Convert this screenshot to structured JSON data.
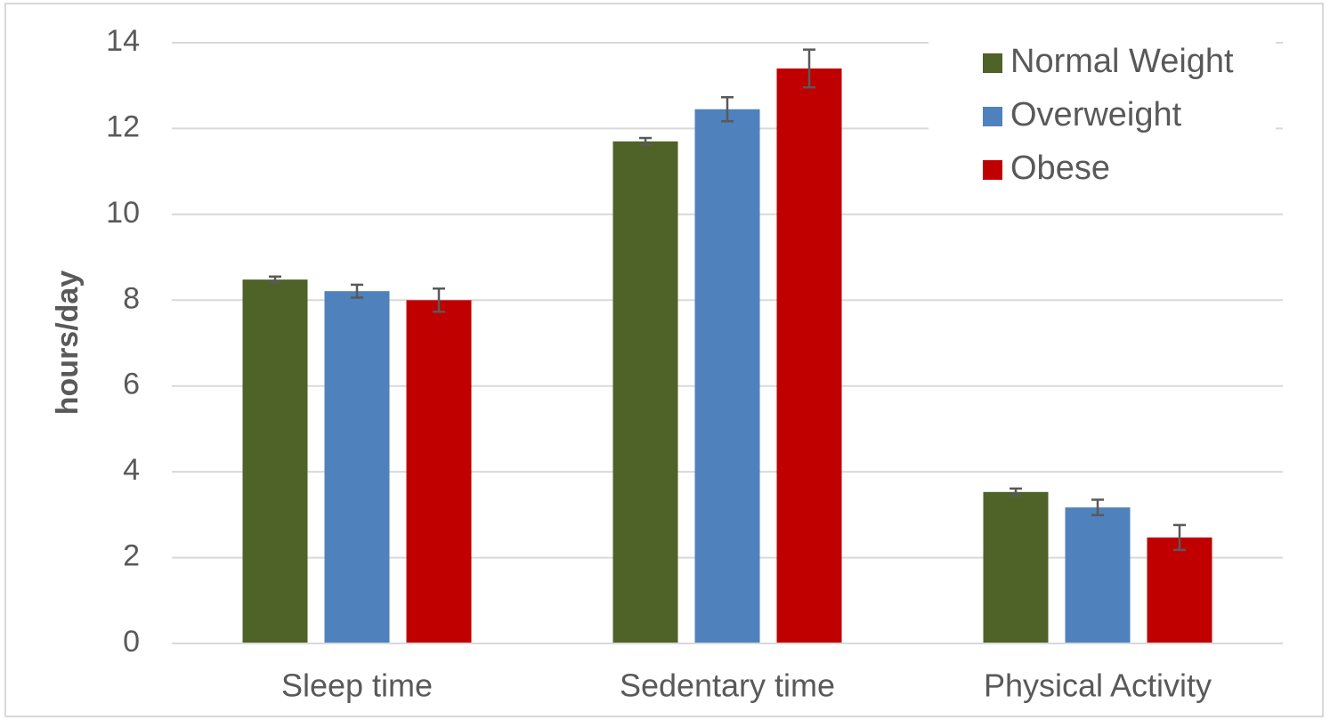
{
  "chart_data": {
    "type": "bar",
    "y_label": "hours/day",
    "categories": [
      "Sleep time",
      "Sedentary time",
      "Physical Activity"
    ],
    "series": [
      {
        "name": "Normal Weight",
        "color": "#4f6228",
        "values": [
          8.48,
          11.7,
          3.53
        ],
        "errors": [
          0.07,
          0.08,
          0.08
        ]
      },
      {
        "name": "Overweight",
        "color": "#4f81bd",
        "values": [
          8.21,
          12.45,
          3.17
        ],
        "errors": [
          0.15,
          0.28,
          0.18
        ]
      },
      {
        "name": "Obese",
        "color": "#c00000",
        "values": [
          8.0,
          13.4,
          2.47
        ],
        "errors": [
          0.27,
          0.44,
          0.29
        ]
      }
    ],
    "ylim": [
      0,
      14
    ],
    "yticks": [
      0,
      2,
      4,
      6,
      8,
      10,
      12,
      14
    ],
    "grid": true,
    "legend": "top-right"
  }
}
